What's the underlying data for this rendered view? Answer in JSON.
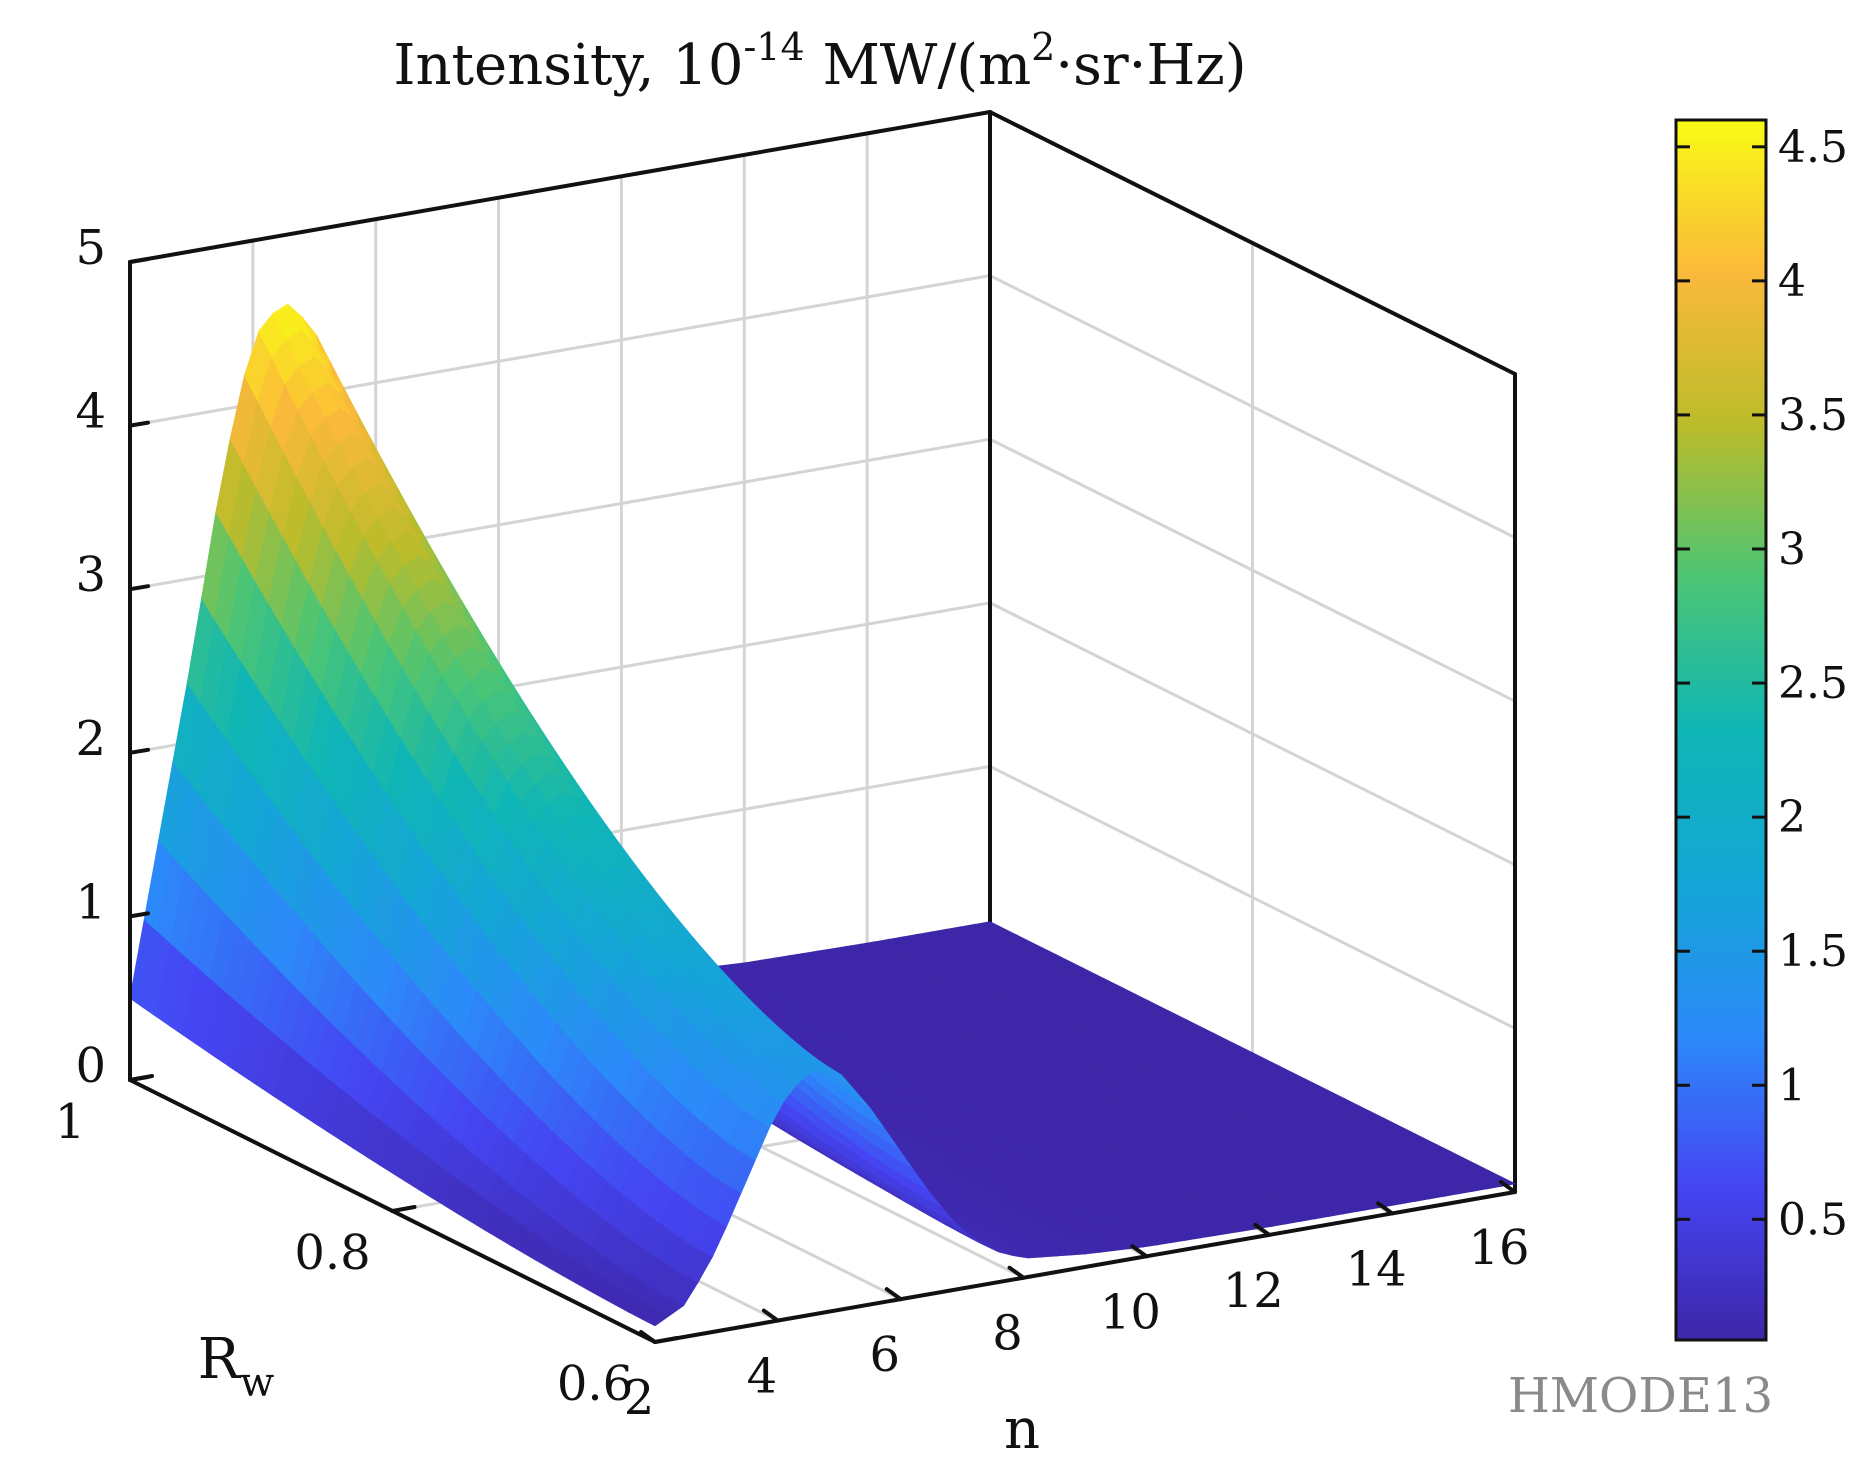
{
  "figure": {
    "title_prefix": "Intensity, 10",
    "title_exponent": "-14",
    "title_mid": " MW/(m",
    "title_sq": "2",
    "title_suffix": "·sr·Hz)",
    "watermark": "HMODE13"
  },
  "chart_data": {
    "type": "surface",
    "title": "Intensity, 10^-14 MW/(m^2·sr·Hz)",
    "xlabel": "n",
    "ylabel": "R",
    "ylabel_subscript": "w",
    "zlabel": "",
    "xlim": [
      2,
      16
    ],
    "ylim": [
      0.6,
      1
    ],
    "zlim": [
      0,
      5
    ],
    "x_ticks": [
      "2",
      "4",
      "6",
      "8",
      "10",
      "12",
      "14",
      "16"
    ],
    "x_tick_values": [
      2,
      4,
      6,
      8,
      10,
      12,
      14,
      16
    ],
    "y_ticks": [
      "0.6",
      "0.8",
      "1"
    ],
    "y_tick_values": [
      0.6,
      0.8,
      1.0
    ],
    "z_ticks": [
      "0",
      "1",
      "2",
      "3",
      "4",
      "5"
    ],
    "z_tick_values": [
      0,
      1,
      2,
      3,
      4,
      5
    ],
    "grid": true,
    "colormap": "parula",
    "colorbar": {
      "ticks": [
        "0.5",
        "1",
        "1.5",
        "2",
        "2.5",
        "3",
        "3.5",
        "4",
        "4.5"
      ],
      "tick_values": [
        0.5,
        1,
        1.5,
        2,
        2.5,
        3,
        3.5,
        4,
        4.5
      ],
      "cmin": 0.05,
      "cmax": 4.6
    },
    "surface_profile": {
      "description_values": "peak intensity vs n at R_w = 1",
      "n": [
        2,
        2.5,
        3,
        3.5,
        4,
        4.5,
        5,
        5.5,
        6,
        6.5,
        7,
        7.5,
        8,
        9,
        10,
        12,
        14,
        16
      ],
      "intensity_at_Rw_1": [
        0.5,
        1.5,
        2.5,
        3.6,
        4.4,
        4.6,
        4.4,
        3.7,
        2.8,
        1.9,
        1.1,
        0.6,
        0.3,
        0.15,
        0.1,
        0.06,
        0.05,
        0.05
      ],
      "intensity_at_Rw_0.6": [
        0.1,
        0.2,
        0.5,
        0.9,
        1.3,
        1.5,
        1.45,
        1.2,
        0.9,
        0.6,
        0.35,
        0.2,
        0.12,
        0.08,
        0.06,
        0.05,
        0.05,
        0.05
      ]
    },
    "colors": {
      "axis_line": "#111111",
      "grid_line": "#d4d4d4"
    }
  }
}
